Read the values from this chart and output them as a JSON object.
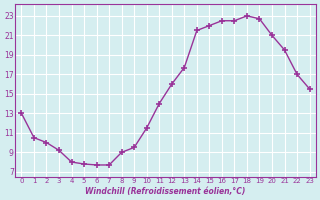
{
  "x": [
    0,
    1,
    2,
    3,
    4,
    5,
    6,
    7,
    8,
    9,
    10,
    11,
    12,
    13,
    14,
    15,
    16,
    17,
    18,
    19,
    20,
    21,
    22,
    23
  ],
  "y": [
    13,
    10.5,
    10,
    9.2,
    8,
    7.8,
    7.7,
    7.7,
    9,
    9.5,
    11.5,
    14,
    16,
    17.7,
    21.5,
    22,
    22.5,
    22.5,
    23,
    22.7,
    21,
    19.5,
    17,
    15.5
  ],
  "line_color": "#993399",
  "marker": "+",
  "bg_color": "#d5eef0",
  "grid_color": "#ffffff",
  "xlabel": "Windchill (Refroidissement éolien,°C)",
  "yticks": [
    7,
    9,
    11,
    13,
    15,
    17,
    19,
    21,
    23
  ],
  "xticks": [
    0,
    1,
    2,
    3,
    4,
    5,
    6,
    7,
    8,
    9,
    10,
    11,
    12,
    13,
    14,
    15,
    16,
    17,
    18,
    19,
    20,
    21,
    22,
    23
  ],
  "xlim": [
    -0.5,
    23.5
  ],
  "ylim": [
    6.5,
    24.2
  ]
}
